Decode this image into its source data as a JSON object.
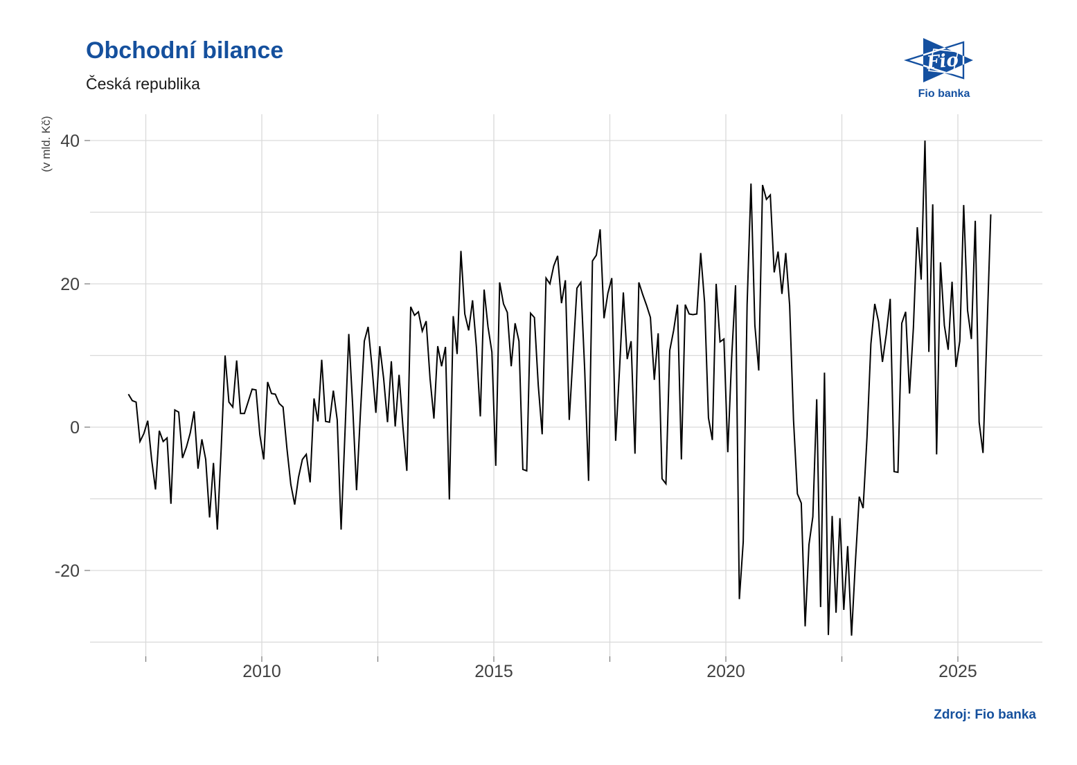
{
  "header": {
    "title": "Obchodní bilance",
    "subtitle": "Česká republika"
  },
  "source": "Zdroj: Fio banka",
  "logo": {
    "mark": "Fio",
    "caption": "Fio banka",
    "color": "#1450a0"
  },
  "colors": {
    "accent": "#15509d",
    "line": "#000000",
    "grid": "#d9d9d9",
    "tick": "#808080",
    "tick_text": "#404040"
  },
  "chart_data": {
    "type": "line",
    "title": "Obchodní bilance",
    "subtitle": "Česká republika",
    "ylabel": "(v mld. Kč)",
    "series_name": "Obchodní bilance (mld. Kč)",
    "grid": true,
    "legend": false,
    "xlim": [
      2006.2985,
      2026.8209
    ],
    "ylim": [
      -31.98,
      43.67
    ],
    "x_tick_labels": [
      "2010",
      "2015",
      "2020",
      "2025"
    ],
    "x_tick_positions": [
      2010,
      2015,
      2020,
      2025
    ],
    "x_grid_positions": [
      2007.5,
      2010,
      2012.5,
      2015,
      2017.5,
      2020,
      2022.5,
      2025
    ],
    "y_tick_labels": [
      "40",
      "20",
      "0",
      "-20"
    ],
    "y_tick_positions": [
      40,
      20,
      0,
      -20
    ],
    "y_grid_positions": [
      -30,
      -20,
      -10,
      0,
      10,
      20,
      30,
      40
    ],
    "months": [
      "2007-02",
      "2007-03",
      "2007-04",
      "2007-05",
      "2007-06",
      "2007-07",
      "2007-08",
      "2007-09",
      "2007-10",
      "2007-11",
      "2007-12",
      "2008-01",
      "2008-02",
      "2008-03",
      "2008-04",
      "2008-05",
      "2008-06",
      "2008-07",
      "2008-08",
      "2008-09",
      "2008-10",
      "2008-11",
      "2008-12",
      "2009-01",
      "2009-02",
      "2009-03",
      "2009-04",
      "2009-05",
      "2009-06",
      "2009-07",
      "2009-08",
      "2009-09",
      "2009-10",
      "2009-11",
      "2009-12",
      "2010-01",
      "2010-02",
      "2010-03",
      "2010-04",
      "2010-05",
      "2010-06",
      "2010-07",
      "2010-08",
      "2010-09",
      "2010-10",
      "2010-11",
      "2010-12",
      "2011-01",
      "2011-02",
      "2011-03",
      "2011-04",
      "2011-05",
      "2011-06",
      "2011-07",
      "2011-08",
      "2011-09",
      "2011-10",
      "2011-11",
      "2011-12",
      "2012-01",
      "2012-02",
      "2012-03",
      "2012-04",
      "2012-05",
      "2012-06",
      "2012-07",
      "2012-08",
      "2012-09",
      "2012-10",
      "2012-11",
      "2012-12",
      "2013-01",
      "2013-02",
      "2013-03",
      "2013-04",
      "2013-05",
      "2013-06",
      "2013-07",
      "2013-08",
      "2013-09",
      "2013-10",
      "2013-11",
      "2013-12",
      "2014-01",
      "2014-02",
      "2014-03",
      "2014-04",
      "2014-05",
      "2014-06",
      "2014-07",
      "2014-08",
      "2014-09",
      "2014-10",
      "2014-11",
      "2014-12",
      "2015-01",
      "2015-02",
      "2015-03",
      "2015-04",
      "2015-05",
      "2015-06",
      "2015-07",
      "2015-08",
      "2015-09",
      "2015-10",
      "2015-11",
      "2015-12",
      "2016-01",
      "2016-02",
      "2016-03",
      "2016-04",
      "2016-05",
      "2016-06",
      "2016-07",
      "2016-08",
      "2016-09",
      "2016-10",
      "2016-11",
      "2016-12",
      "2017-01",
      "2017-02",
      "2017-03",
      "2017-04",
      "2017-05",
      "2017-06",
      "2017-07",
      "2017-08",
      "2017-09",
      "2017-10",
      "2017-11",
      "2017-12",
      "2018-01",
      "2018-02",
      "2018-03",
      "2018-04",
      "2018-05",
      "2018-06",
      "2018-07",
      "2018-08",
      "2018-09",
      "2018-10",
      "2018-11",
      "2018-12",
      "2019-01",
      "2019-02",
      "2019-03",
      "2019-04",
      "2019-05",
      "2019-06",
      "2019-07",
      "2019-08",
      "2019-09",
      "2019-10",
      "2019-11",
      "2019-12",
      "2020-01",
      "2020-02",
      "2020-03",
      "2020-04",
      "2020-05",
      "2020-06",
      "2020-07",
      "2020-08",
      "2020-09",
      "2020-10",
      "2020-11",
      "2020-12",
      "2021-01",
      "2021-02",
      "2021-03",
      "2021-04",
      "2021-05",
      "2021-06",
      "2021-07",
      "2021-08",
      "2021-09",
      "2021-10",
      "2021-11",
      "2021-12",
      "2022-01",
      "2022-02",
      "2022-03",
      "2022-04",
      "2022-05",
      "2022-06",
      "2022-07",
      "2022-08",
      "2022-09",
      "2022-10",
      "2022-11",
      "2022-12",
      "2023-01",
      "2023-02",
      "2023-03",
      "2023-04",
      "2023-05",
      "2023-06",
      "2023-07",
      "2023-08",
      "2023-09",
      "2023-10",
      "2023-11",
      "2023-12",
      "2024-01",
      "2024-02",
      "2024-03",
      "2024-04",
      "2024-05",
      "2024-06",
      "2024-07",
      "2024-08",
      "2024-09",
      "2024-10",
      "2024-11",
      "2024-12",
      "2025-01",
      "2025-02",
      "2025-03",
      "2025-04",
      "2025-05",
      "2025-06",
      "2025-07",
      "2025-08",
      "2025-09"
    ],
    "values": [
      4.6,
      3.7,
      3.5,
      -2.0,
      -0.9,
      0.9,
      -4.5,
      -8.7,
      -0.5,
      -2.0,
      -1.5,
      -10.7,
      2.4,
      2.1,
      -4.3,
      -2.8,
      -0.8,
      2.2,
      -5.8,
      -1.7,
      -4.5,
      -12.6,
      -5.0,
      -14.3,
      -2.9,
      10.0,
      3.5,
      2.8,
      9.3,
      1.9,
      1.9,
      3.6,
      5.3,
      5.2,
      -1.1,
      -4.5,
      6.3,
      4.7,
      4.6,
      3.3,
      2.8,
      -3.0,
      -8.0,
      -10.8,
      -7.0,
      -4.5,
      -3.8,
      -7.7,
      4.0,
      0.8,
      9.4,
      0.8,
      0.7,
      5.1,
      1.0,
      -14.3,
      -1.0,
      13.0,
      3.0,
      -8.8,
      2.0,
      12.0,
      14.0,
      8.4,
      2.0,
      11.3,
      6.8,
      0.7,
      9.2,
      0.1,
      7.3,
      0.0,
      -6.1,
      16.8,
      15.6,
      16.1,
      13.4,
      14.8,
      6.8,
      1.2,
      11.3,
      8.5,
      11.2,
      -10.1,
      15.5,
      10.2,
      24.6,
      15.8,
      13.5,
      17.7,
      11.1,
      1.5,
      19.2,
      14.0,
      10.5,
      -5.4,
      20.2,
      17.2,
      16.0,
      8.5,
      14.5,
      12.0,
      -5.9,
      -6.1,
      15.9,
      15.3,
      5.8,
      -1.0,
      20.8,
      20.0,
      22.5,
      23.9,
      17.3,
      20.5,
      1.0,
      10.3,
      19.4,
      20.2,
      8.0,
      -7.5,
      23.2,
      24.0,
      27.6,
      15.2,
      18.7,
      20.8,
      -1.9,
      8.1,
      18.8,
      9.5,
      12.0,
      -3.7,
      20.2,
      18.5,
      17.0,
      15.3,
      6.6,
      13.1,
      -7.2,
      -7.9,
      10.7,
      13.5,
      17.1,
      -4.5,
      17.1,
      15.8,
      15.7,
      15.8,
      24.3,
      17.4,
      1.3,
      -1.8,
      20.0,
      11.9,
      12.3,
      -3.5,
      9.7,
      19.8,
      -24.0,
      -16.0,
      17.1,
      34.0,
      14.2,
      7.9,
      33.8,
      31.8,
      32.4,
      21.6,
      24.5,
      18.6,
      24.3,
      17.0,
      1.0,
      -9.3,
      -10.6,
      -27.8,
      -16.4,
      -12.5,
      3.9,
      -25.1,
      7.6,
      -29.0,
      -12.4,
      -25.9,
      -12.7,
      -25.5,
      -16.6,
      -29.1,
      -18.9,
      -9.7,
      -11.3,
      -1.4,
      11.6,
      17.2,
      14.7,
      9.1,
      13.0,
      17.9,
      -6.2,
      -6.3,
      14.5,
      16.1,
      4.7,
      13.9,
      27.9,
      20.6,
      40.0,
      10.5,
      31.1,
      -3.8,
      23.0,
      14.2,
      10.8,
      20.3,
      8.4,
      12.0,
      31.0,
      16.3,
      12.3,
      28.8,
      0.7,
      -3.6,
      13.0,
      29.7
    ]
  }
}
